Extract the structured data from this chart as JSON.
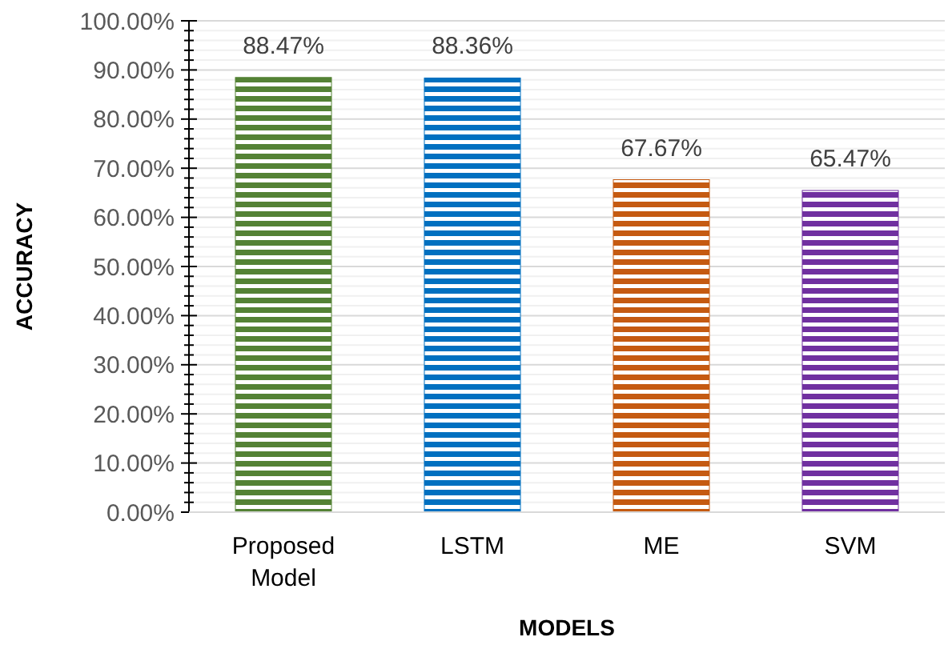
{
  "chart_data": {
    "type": "bar",
    "xlabel": "MODELS",
    "ylabel": "ACCURACY",
    "categories": [
      "Proposed Model",
      "LSTM",
      "ME",
      "SVM"
    ],
    "values": [
      88.47,
      88.36,
      67.67,
      65.47
    ],
    "colors": [
      "#548235",
      "#0070c0",
      "#c55a11",
      "#7030a0"
    ],
    "value_labels": [
      "88.47%",
      "88.36%",
      "67.67%",
      "65.47%"
    ],
    "ylim": [
      0,
      100
    ],
    "yticks": [
      {
        "value": 0,
        "label": "0.00%"
      },
      {
        "value": 2,
        "label": null
      },
      {
        "value": 4,
        "label": null
      },
      {
        "value": 6,
        "label": null
      },
      {
        "value": 8,
        "label": null
      },
      {
        "value": 10,
        "label": "10.00%"
      },
      {
        "value": 12,
        "label": null
      },
      {
        "value": 14,
        "label": null
      },
      {
        "value": 16,
        "label": null
      },
      {
        "value": 18,
        "label": null
      },
      {
        "value": 20,
        "label": "20.00%"
      },
      {
        "value": 22,
        "label": null
      },
      {
        "value": 24,
        "label": null
      },
      {
        "value": 26,
        "label": null
      },
      {
        "value": 28,
        "label": null
      },
      {
        "value": 30,
        "label": "30.00%"
      },
      {
        "value": 32,
        "label": null
      },
      {
        "value": 34,
        "label": null
      },
      {
        "value": 36,
        "label": null
      },
      {
        "value": 38,
        "label": null
      },
      {
        "value": 40,
        "label": "40.00%"
      },
      {
        "value": 42,
        "label": null
      },
      {
        "value": 44,
        "label": null
      },
      {
        "value": 46,
        "label": null
      },
      {
        "value": 48,
        "label": null
      },
      {
        "value": 50,
        "label": "50.00%"
      },
      {
        "value": 52,
        "label": null
      },
      {
        "value": 54,
        "label": null
      },
      {
        "value": 56,
        "label": null
      },
      {
        "value": 58,
        "label": null
      },
      {
        "value": 60,
        "label": "60.00%"
      },
      {
        "value": 62,
        "label": null
      },
      {
        "value": 64,
        "label": null
      },
      {
        "value": 66,
        "label": null
      },
      {
        "value": 68,
        "label": null
      },
      {
        "value": 70,
        "label": "70.00%"
      },
      {
        "value": 72,
        "label": null
      },
      {
        "value": 74,
        "label": null
      },
      {
        "value": 76,
        "label": null
      },
      {
        "value": 78,
        "label": null
      },
      {
        "value": 80,
        "label": "80.00%"
      },
      {
        "value": 82,
        "label": null
      },
      {
        "value": 84,
        "label": null
      },
      {
        "value": 86,
        "label": null
      },
      {
        "value": 88,
        "label": null
      },
      {
        "value": 90,
        "label": "90.00%"
      },
      {
        "value": 92,
        "label": null
      },
      {
        "value": 94,
        "label": null
      },
      {
        "value": 96,
        "label": null
      },
      {
        "value": 98,
        "label": null
      },
      {
        "value": 100,
        "label": "100.00%"
      }
    ],
    "grid": true
  }
}
